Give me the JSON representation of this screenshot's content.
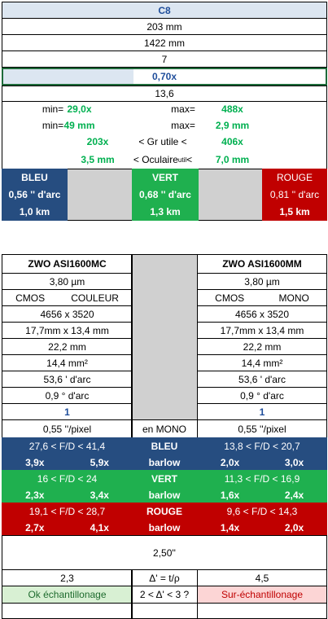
{
  "top_panel": {
    "title": "C8",
    "values": [
      "203 mm",
      "1422 mm",
      "7"
    ],
    "reducer": "0,70x",
    "ratio": "13,6",
    "limits": [
      [
        "min=",
        "29,0x",
        "max=",
        "488x"
      ],
      [
        "min=",
        "49 mm",
        "max=",
        "2,9 mm"
      ]
    ],
    "useful_magnification": {
      "min": "203x",
      "label": "< Gr utile <",
      "max": "406x"
    },
    "eyepiece": {
      "min": "3,5 mm",
      "label": "< Oculaire",
      "sub": "util",
      "label_end": "<",
      "max": "7,0 mm"
    },
    "colors": [
      {
        "name": "BLEU",
        "resolution": "0,56 '' d'arc",
        "distance": "1,0 km"
      },
      {
        "name": "VERT",
        "resolution": "0,68 '' d'arc",
        "distance": "1,3 km"
      },
      {
        "name": "ROUGE",
        "resolution": "0,81 '' d'arc",
        "distance": "1,5 km"
      }
    ]
  },
  "cameras": [
    {
      "name": "ZWO ASI1600MC",
      "pixel": "3,80 µm",
      "sensor": "CMOS",
      "mode": "COULEUR",
      "resolution": "4656 x 3520",
      "size": "17,7mm x 13,4 mm",
      "diagonal": "22,2 mm",
      "area": "14,4 mm²",
      "field": "53,6 ' d'arc",
      "field_deg": "0,9 ° d'arc",
      "binning": "1",
      "sampling": "0,55 ''/pixel",
      "filters": [
        {
          "fd": "27,6 < F/D < 41,4",
          "barlow_min": "3,9x",
          "barlow_max": "5,9x"
        },
        {
          "fd": "16 < F/D < 24",
          "barlow_min": "2,3x",
          "barlow_max": "3,4x"
        },
        {
          "fd": "19,1 < F/D < 28,7",
          "barlow_min": "2,7x",
          "barlow_max": "4,1x"
        }
      ],
      "delta": "2,3",
      "verdict": "Ok échantillonage"
    },
    {
      "name": "ZWO ASI1600MM",
      "pixel": "3,80 µm",
      "sensor": "CMOS",
      "mode": "MONO",
      "resolution": "4656 x 3520",
      "size": "17,7mm x 13,4 mm",
      "diagonal": "22,2 mm",
      "area": "14,4 mm²",
      "field": "53,6 ' d'arc",
      "field_deg": "0,9 ° d'arc",
      "binning": "1",
      "sampling": "0,55 ''/pixel",
      "filters": [
        {
          "fd": "13,8 < F/D < 20,7",
          "barlow_min": "2,0x",
          "barlow_max": "3,0x"
        },
        {
          "fd": "11,3 < F/D < 16,9",
          "barlow_min": "1,6x",
          "barlow_max": "2,4x"
        },
        {
          "fd": "9,6 < F/D < 14,3",
          "barlow_min": "1,4x",
          "barlow_max": "2,0x"
        }
      ],
      "delta": "4,5",
      "verdict": "Sur-échantillonage"
    }
  ],
  "middle": {
    "mode": "en MONO",
    "filters": [
      {
        "name": "BLEU",
        "note": "barlow"
      },
      {
        "name": "VERT",
        "note": "barlow"
      },
      {
        "name": "ROUGE",
        "note": "barlow"
      }
    ],
    "formula": "Δ' = t/ρ",
    "range": "2 < Δ' < 3  ?"
  },
  "seeing": "2,50''"
}
